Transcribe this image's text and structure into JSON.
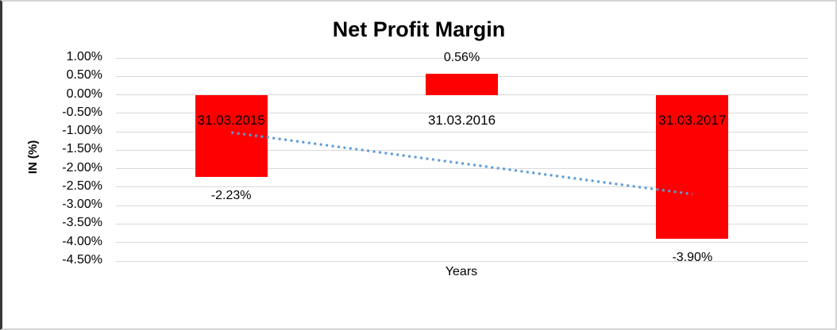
{
  "window": {
    "background": "#FFFFFF",
    "border_light": "#D4D4D4",
    "border_dark": "#383838"
  },
  "chart_data": {
    "type": "bar",
    "title": "Net Profit Margin",
    "xlabel": "Years",
    "ylabel": "IN (%)",
    "categories": [
      "31.03.2015",
      "31.03.2016",
      "31.03.2017"
    ],
    "values": [
      -2.23,
      0.56,
      -3.9
    ],
    "data_labels": [
      "-2.23%",
      "0.56%",
      "-3.90%"
    ],
    "unit": "percent",
    "ylim": [
      -4.5,
      1.0
    ],
    "ytick_step": 0.5,
    "ytick_labels": [
      "1.00%",
      "0.50%",
      "0.00%",
      "-0.50%",
      "-1.00%",
      "-1.50%",
      "-2.00%",
      "-2.50%",
      "-3.00%",
      "-3.50%",
      "-4.00%",
      "-4.50%"
    ],
    "grid": true,
    "gridline_color": "#D9D9D9",
    "bar_color": "#FF0000",
    "legend": "none",
    "trendline": {
      "type": "linear",
      "style": "dotted",
      "color": "#5B9BD5",
      "start_value": -1.02,
      "end_value": -2.69
    }
  }
}
